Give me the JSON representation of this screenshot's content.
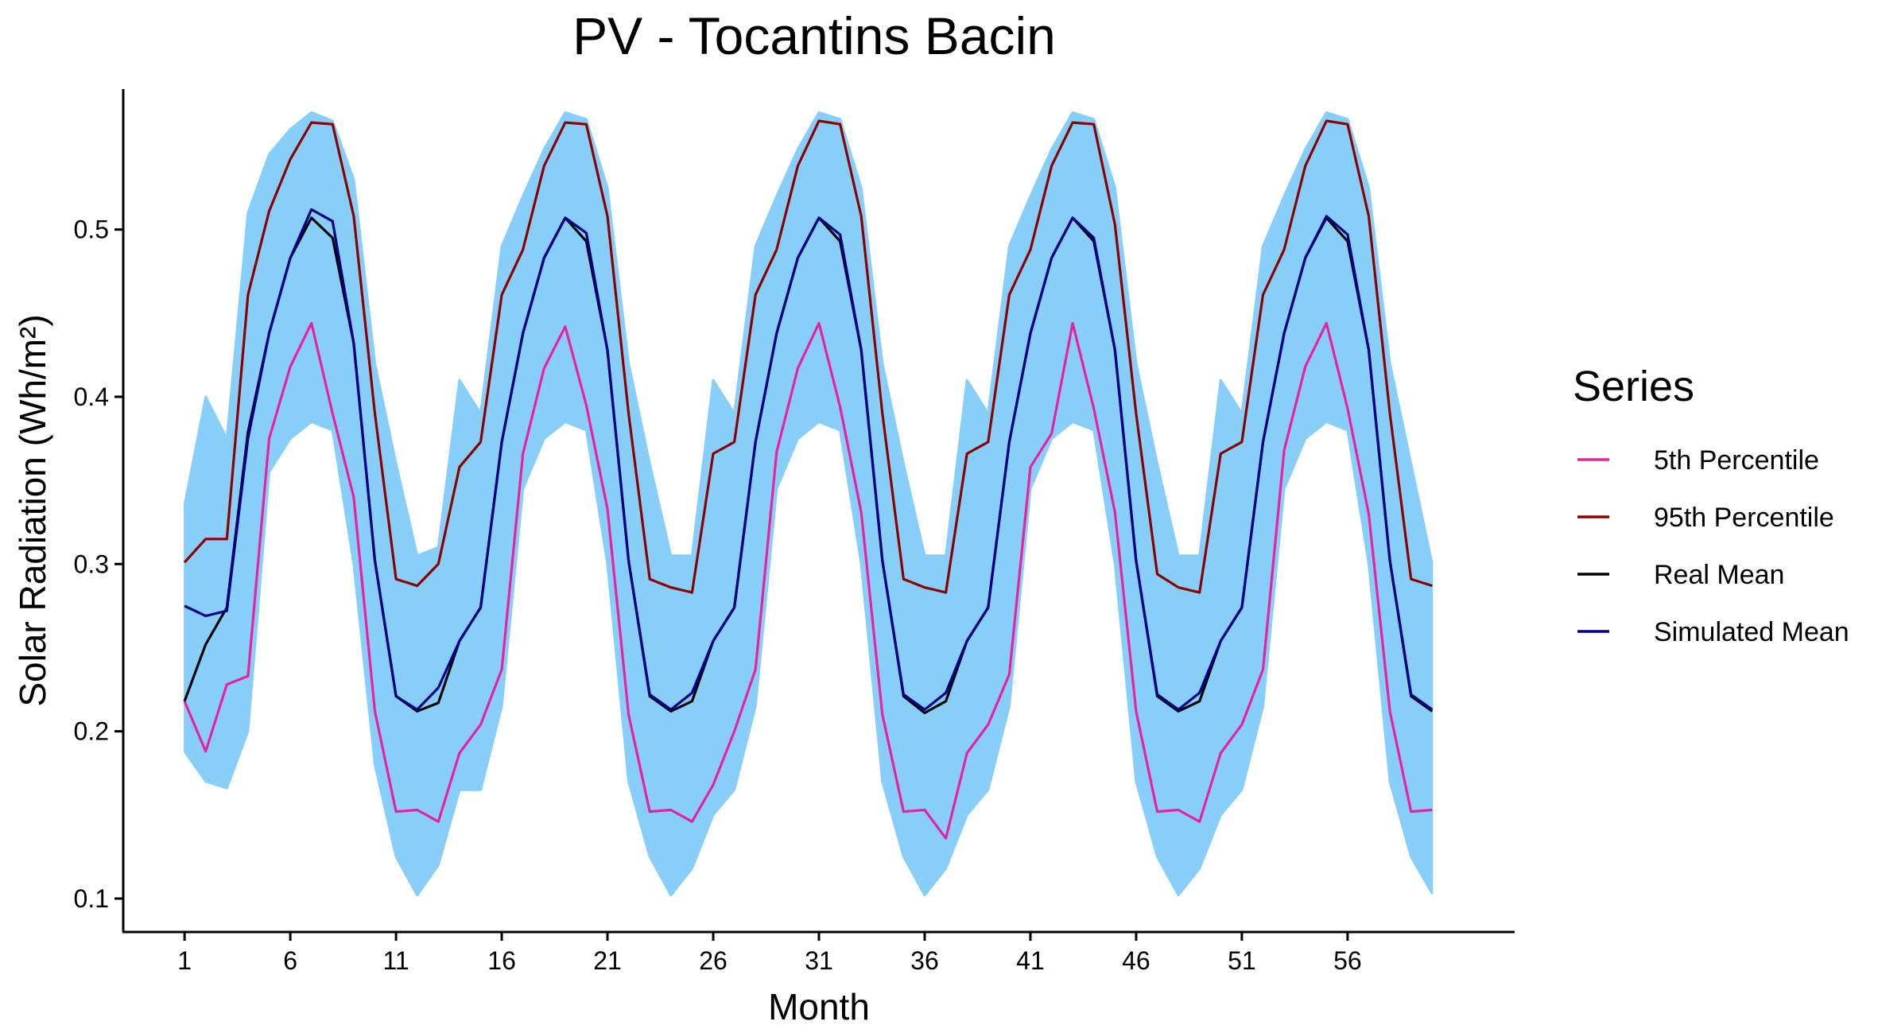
{
  "chart_data": {
    "type": "line",
    "title": "PV - Tocantins Bacin",
    "xlabel": "Month",
    "ylabel": "Solar Radiation (Wh/m²)",
    "xlim": [
      -1.9,
      63.9
    ],
    "ylim": [
      0.08,
      0.584
    ],
    "x_ticks": [
      1,
      6,
      11,
      16,
      21,
      26,
      31,
      36,
      41,
      46,
      51,
      56
    ],
    "y_ticks": [
      0.1,
      0.2,
      0.3,
      0.4,
      0.5
    ],
    "legend": {
      "title": "Series",
      "position": "right"
    },
    "x": [
      1,
      2,
      3,
      4,
      5,
      6,
      7,
      8,
      9,
      10,
      11,
      12,
      13,
      14,
      15,
      16,
      17,
      18,
      19,
      20,
      21,
      22,
      23,
      24,
      25,
      26,
      27,
      28,
      29,
      30,
      31,
      32,
      33,
      34,
      35,
      36,
      37,
      38,
      39,
      40,
      41,
      42,
      43,
      44,
      45,
      46,
      47,
      48,
      49,
      50,
      51,
      52,
      53,
      54,
      55,
      56,
      57,
      58,
      59,
      60
    ],
    "series": [
      {
        "name": "5th Percentile",
        "color": "#e8229c",
        "values": [
          0.218,
          0.188,
          0.228,
          0.233,
          0.375,
          0.418,
          0.444,
          0.39,
          0.34,
          0.212,
          0.152,
          0.153,
          0.146,
          0.187,
          0.204,
          0.237,
          0.366,
          0.417,
          0.442,
          0.395,
          0.333,
          0.21,
          0.152,
          0.153,
          0.146,
          0.168,
          0.2,
          0.237,
          0.367,
          0.417,
          0.444,
          0.394,
          0.331,
          0.21,
          0.152,
          0.153,
          0.136,
          0.187,
          0.204,
          0.234,
          0.358,
          0.378,
          0.444,
          0.393,
          0.331,
          0.212,
          0.152,
          0.153,
          0.146,
          0.187,
          0.204,
          0.237,
          0.368,
          0.418,
          0.444,
          0.393,
          0.33,
          0.212,
          0.152,
          0.153
        ]
      },
      {
        "name": "95th Percentile",
        "color": "#8b0000",
        "values": [
          0.301,
          0.315,
          0.315,
          0.461,
          0.511,
          0.542,
          0.564,
          0.563,
          0.508,
          0.39,
          0.291,
          0.287,
          0.3,
          0.358,
          0.373,
          0.461,
          0.488,
          0.538,
          0.564,
          0.563,
          0.508,
          0.39,
          0.291,
          0.286,
          0.283,
          0.366,
          0.373,
          0.461,
          0.488,
          0.538,
          0.565,
          0.563,
          0.508,
          0.39,
          0.291,
          0.286,
          0.283,
          0.366,
          0.373,
          0.461,
          0.488,
          0.538,
          0.564,
          0.563,
          0.503,
          0.39,
          0.294,
          0.286,
          0.283,
          0.366,
          0.373,
          0.461,
          0.488,
          0.538,
          0.565,
          0.563,
          0.508,
          0.39,
          0.291,
          0.287
        ]
      },
      {
        "name": "Real Mean",
        "color": "#000000",
        "values": [
          0.218,
          0.252,
          0.274,
          0.379,
          0.438,
          0.483,
          0.507,
          0.495,
          0.432,
          0.302,
          0.221,
          0.212,
          0.217,
          0.254,
          0.274,
          0.373,
          0.438,
          0.483,
          0.507,
          0.493,
          0.428,
          0.302,
          0.221,
          0.212,
          0.218,
          0.254,
          0.274,
          0.373,
          0.438,
          0.483,
          0.507,
          0.493,
          0.428,
          0.302,
          0.221,
          0.211,
          0.218,
          0.254,
          0.274,
          0.373,
          0.438,
          0.483,
          0.507,
          0.493,
          0.428,
          0.302,
          0.221,
          0.212,
          0.218,
          0.254,
          0.274,
          0.373,
          0.438,
          0.483,
          0.507,
          0.493,
          0.428,
          0.302,
          0.221,
          0.212
        ]
      },
      {
        "name": "Simulated Mean",
        "color": "#00008b",
        "values": [
          0.275,
          0.269,
          0.272,
          0.375,
          0.438,
          0.483,
          0.512,
          0.505,
          0.432,
          0.302,
          0.221,
          0.213,
          0.226,
          0.254,
          0.274,
          0.373,
          0.438,
          0.483,
          0.507,
          0.498,
          0.428,
          0.302,
          0.222,
          0.213,
          0.223,
          0.254,
          0.274,
          0.373,
          0.438,
          0.483,
          0.507,
          0.497,
          0.428,
          0.302,
          0.222,
          0.213,
          0.223,
          0.254,
          0.274,
          0.373,
          0.438,
          0.483,
          0.507,
          0.495,
          0.428,
          0.302,
          0.222,
          0.213,
          0.223,
          0.254,
          0.274,
          0.373,
          0.438,
          0.483,
          0.508,
          0.497,
          0.428,
          0.302,
          0.222,
          0.213
        ]
      }
    ],
    "simulation_band": {
      "color": "#87cefa",
      "upper": [
        0.335,
        0.4,
        0.375,
        0.51,
        0.545,
        0.56,
        0.57,
        0.565,
        0.53,
        0.42,
        0.36,
        0.305,
        0.31,
        0.41,
        0.39,
        0.49,
        0.52,
        0.548,
        0.57,
        0.566,
        0.525,
        0.42,
        0.36,
        0.305,
        0.305,
        0.41,
        0.39,
        0.49,
        0.52,
        0.548,
        0.57,
        0.566,
        0.525,
        0.42,
        0.36,
        0.305,
        0.305,
        0.41,
        0.39,
        0.49,
        0.52,
        0.548,
        0.57,
        0.566,
        0.525,
        0.42,
        0.36,
        0.305,
        0.305,
        0.41,
        0.39,
        0.49,
        0.52,
        0.548,
        0.57,
        0.566,
        0.525,
        0.42,
        0.36,
        0.3
      ],
      "lower": [
        0.188,
        0.17,
        0.166,
        0.2,
        0.355,
        0.375,
        0.385,
        0.38,
        0.3,
        0.18,
        0.125,
        0.102,
        0.12,
        0.165,
        0.165,
        0.215,
        0.345,
        0.375,
        0.385,
        0.38,
        0.3,
        0.17,
        0.125,
        0.102,
        0.118,
        0.15,
        0.165,
        0.215,
        0.345,
        0.375,
        0.385,
        0.38,
        0.3,
        0.17,
        0.125,
        0.102,
        0.118,
        0.15,
        0.165,
        0.215,
        0.345,
        0.375,
        0.385,
        0.38,
        0.3,
        0.17,
        0.125,
        0.102,
        0.118,
        0.15,
        0.165,
        0.215,
        0.345,
        0.375,
        0.385,
        0.38,
        0.3,
        0.17,
        0.125,
        0.103
      ]
    }
  }
}
